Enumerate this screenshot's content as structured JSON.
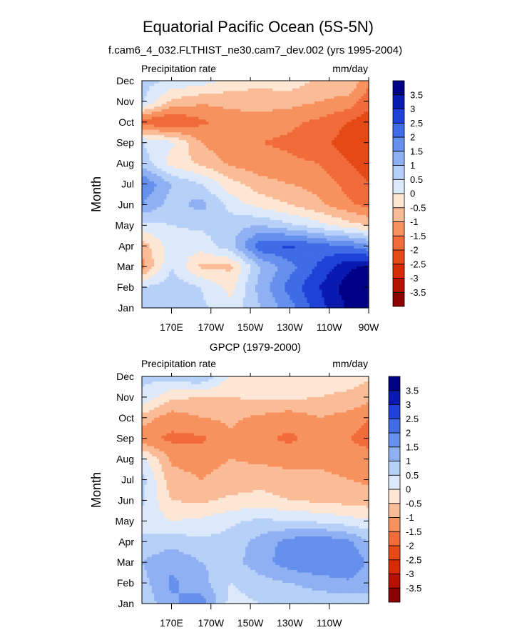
{
  "title": "Equatorial Pacific Ocean (5S-5N)",
  "colorbar": {
    "labels": [
      "3.5",
      "3",
      "2.5",
      "2",
      "1.5",
      "1",
      "0.5",
      "0",
      "-0.5",
      "-1",
      "-1.5",
      "-2",
      "-2.5",
      "-3",
      "-3.5"
    ],
    "colors": [
      "#8b0000",
      "#b51200",
      "#d42b00",
      "#e64a14",
      "#f26b3a",
      "#f7925e",
      "#fabc97",
      "#fde6d4",
      "#dbe9fb",
      "#b7d0f8",
      "#8fb1f3",
      "#6690ee",
      "#3f6be6",
      "#1e42d8",
      "#0a1ab0",
      "#000087"
    ]
  },
  "chart_data": [
    {
      "type": "heatmap",
      "subtitle": "f.cam6_4_032.FLTHIST_ne30.cam7_dev.002 (yrs 1995-2004)",
      "left_label": "Precipitation rate",
      "right_label": "mm/day",
      "ylabel": "Month",
      "xlabel": "",
      "x_ticks": [
        "170E",
        "170W",
        "150W",
        "130W",
        "110W",
        "90W"
      ],
      "y_ticks": [
        "Jan",
        "Feb",
        "Mar",
        "Apr",
        "May",
        "Jun",
        "Jul",
        "Aug",
        "Sep",
        "Oct",
        "Nov",
        "Dec"
      ],
      "x_range": [
        155,
        270
      ],
      "x_tick_values": [
        170,
        190,
        210,
        230,
        250,
        270
      ],
      "y_range": [
        1,
        12
      ],
      "levels": [
        -3.5,
        -3,
        -2.5,
        -2,
        -1.5,
        -1,
        -0.5,
        0,
        0.5,
        1,
        1.5,
        2,
        2.5,
        3,
        3.5
      ],
      "x_grid": [
        155,
        170,
        185,
        200,
        215,
        230,
        245,
        260,
        270
      ],
      "values": [
        [
          0.8,
          1.0,
          0.6,
          0.2,
          1.0,
          1.8,
          2.8,
          3.6,
          3.8
        ],
        [
          0.5,
          0.8,
          0.5,
          -0.2,
          1.2,
          2.2,
          3.0,
          3.8,
          4.0
        ],
        [
          -1.2,
          0.5,
          -0.6,
          -0.6,
          1.0,
          1.8,
          2.6,
          3.4,
          3.6
        ],
        [
          -0.8,
          0.3,
          0.2,
          0.8,
          2.4,
          2.6,
          2.2,
          2.0,
          1.6
        ],
        [
          0.3,
          0.5,
          0.6,
          0.8,
          1.0,
          0.6,
          0.2,
          -0.3,
          -0.5
        ],
        [
          1.5,
          0.8,
          1.2,
          0.3,
          -0.2,
          -0.5,
          -0.9,
          -1.4,
          -1.7
        ],
        [
          2.0,
          1.0,
          0.5,
          -0.3,
          -0.8,
          -1.0,
          -1.2,
          -1.7,
          -2.0
        ],
        [
          0.8,
          -0.2,
          -0.6,
          -1.1,
          -1.3,
          -1.4,
          -1.5,
          -2.0,
          -2.3
        ],
        [
          0.5,
          0.1,
          -1.0,
          -1.4,
          -1.5,
          -1.6,
          -1.8,
          -2.3,
          -2.5
        ],
        [
          -1.8,
          -2.1,
          -1.6,
          -1.3,
          -1.3,
          -1.4,
          -1.6,
          -2.0,
          -2.3
        ],
        [
          0.6,
          -0.6,
          -0.9,
          -0.8,
          -0.7,
          -0.8,
          -1.0,
          -1.2,
          -1.8
        ],
        [
          0.7,
          0.4,
          0.3,
          -0.2,
          -0.4,
          -0.2,
          -0.6,
          -0.5,
          -1.4
        ]
      ]
    },
    {
      "type": "heatmap",
      "subtitle": "GPCP (1979-2000)",
      "left_label": "Precipitation rate",
      "right_label": "mm/day",
      "ylabel": "Month",
      "xlabel": "",
      "x_ticks": [
        "170E",
        "170W",
        "150W",
        "130W",
        "110W"
      ],
      "y_ticks": [
        "Jan",
        "Feb",
        "Mar",
        "Apr",
        "May",
        "Jun",
        "Jul",
        "Aug",
        "Sep",
        "Oct",
        "Nov",
        "Dec"
      ],
      "x_range": [
        155,
        270
      ],
      "x_tick_values": [
        170,
        190,
        210,
        230,
        250
      ],
      "y_range": [
        1,
        12
      ],
      "levels": [
        -3.5,
        -3,
        -2.5,
        -2,
        -1.5,
        -1,
        -0.5,
        0,
        0.5,
        1,
        1.5,
        2,
        2.5,
        3,
        3.5
      ],
      "x_grid": [
        155,
        170,
        185,
        200,
        215,
        230,
        245,
        260,
        270
      ],
      "values": [
        [
          0.6,
          1.4,
          1.8,
          0.3,
          0.5,
          0.6,
          0.7,
          0.6,
          0.8
        ],
        [
          0.8,
          1.6,
          1.2,
          0.5,
          0.8,
          1.0,
          1.2,
          1.4,
          1.2
        ],
        [
          1.0,
          1.4,
          1.0,
          0.8,
          1.3,
          1.8,
          2.0,
          2.0,
          1.4
        ],
        [
          0.6,
          0.8,
          0.6,
          0.7,
          1.2,
          1.7,
          1.9,
          1.6,
          1.0
        ],
        [
          0.3,
          0.0,
          0.1,
          0.4,
          0.6,
          0.5,
          0.4,
          0.2,
          0.1
        ],
        [
          0.6,
          -0.5,
          -0.6,
          -0.4,
          -0.3,
          -0.5,
          -0.6,
          -0.7,
          -0.8
        ],
        [
          0.7,
          -0.8,
          -1.0,
          -0.8,
          -0.7,
          -0.8,
          -0.9,
          -1.0,
          -1.1
        ],
        [
          0.2,
          -1.1,
          -1.2,
          -1.0,
          -1.1,
          -1.2,
          -1.1,
          -1.2,
          -1.3
        ],
        [
          -1.4,
          -1.6,
          -1.6,
          -1.1,
          -1.4,
          -1.6,
          -1.3,
          -1.5,
          -1.7
        ],
        [
          -0.7,
          -1.3,
          -1.0,
          -0.9,
          -1.1,
          -1.3,
          -1.0,
          -1.2,
          -1.5
        ],
        [
          0.4,
          -0.4,
          -0.5,
          -0.5,
          -0.4,
          -0.4,
          -0.5,
          -0.6,
          -0.8
        ],
        [
          0.6,
          0.8,
          1.0,
          -0.1,
          -0.3,
          -0.3,
          -0.3,
          -0.3,
          -0.4
        ]
      ]
    }
  ]
}
